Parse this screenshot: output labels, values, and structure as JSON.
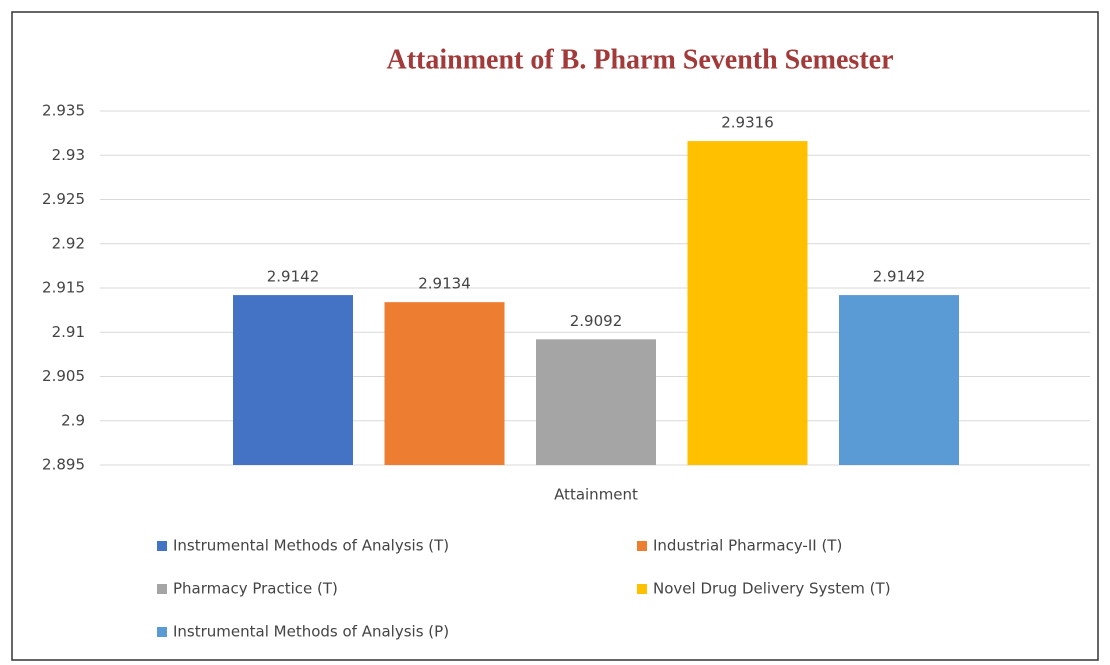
{
  "chart_data": {
    "type": "bar",
    "title": "Attainment of B. Pharm Seventh Semester",
    "categories": [
      "Attainment"
    ],
    "series": [
      {
        "name": "Instrumental Methods of Analysis (T)",
        "color": "#4472c4",
        "values": [
          2.9142
        ]
      },
      {
        "name": "Industrial Pharmacy-II (T)",
        "color": "#ed7d31",
        "values": [
          2.9134
        ]
      },
      {
        "name": "Pharmacy Practice (T)",
        "color": "#a5a5a5",
        "values": [
          2.9092
        ]
      },
      {
        "name": "Novel Drug Delivery System (T)",
        "color": "#ffc000",
        "values": [
          2.9316
        ]
      },
      {
        "name": "Instrumental Methods of Analysis (P)",
        "color": "#5b9bd5",
        "values": [
          2.9142
        ]
      }
    ],
    "ylim": [
      2.895,
      2.935
    ],
    "yticks": [
      2.895,
      2.9,
      2.905,
      2.91,
      2.915,
      2.92,
      2.925,
      2.93,
      2.935
    ],
    "grid": true,
    "legend": "bottom"
  }
}
